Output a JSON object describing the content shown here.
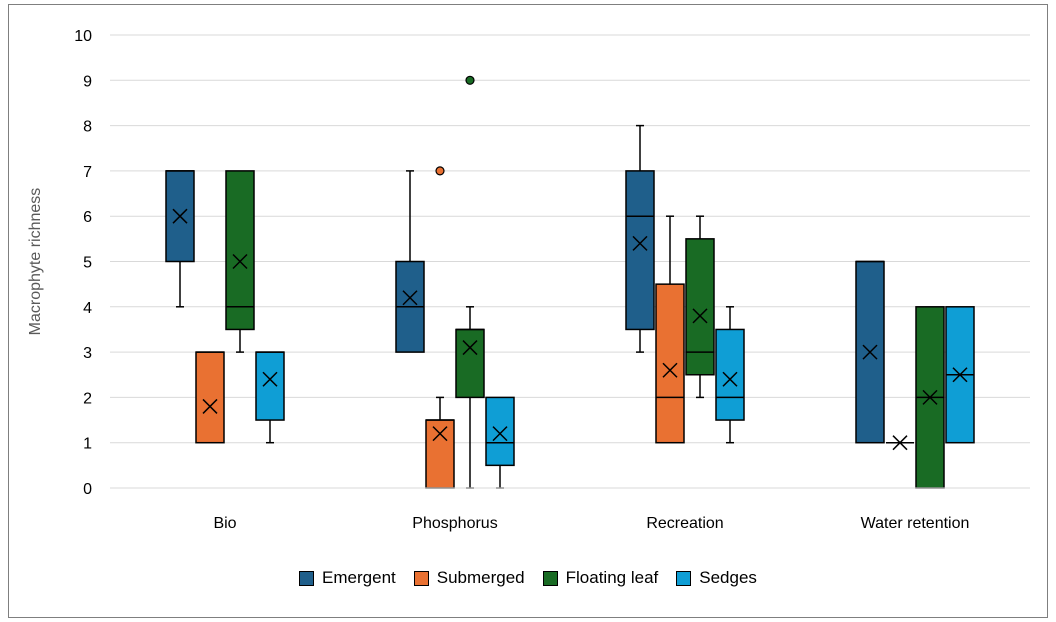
{
  "chart_data": {
    "type": "box",
    "title": "",
    "xlabel": "",
    "ylabel": "Macrophyte richness",
    "ylim": [
      0,
      10
    ],
    "yticks": [
      "0",
      "1",
      "2",
      "3",
      "4",
      "5",
      "6",
      "7",
      "8",
      "9",
      "10"
    ],
    "gridlines": true,
    "legend_position": "bottom",
    "categories": [
      "Bio",
      "Phosphorus",
      "Recreation",
      "Water retention"
    ],
    "series": [
      {
        "name": "Emergent",
        "color": "#1f5f8b",
        "boxes": [
          {
            "min": 4,
            "q1": 5,
            "median": 7,
            "q3": 7,
            "max": 7,
            "mean": 6,
            "outliers": []
          },
          {
            "min": 3,
            "q1": 3,
            "median": 4,
            "q3": 5,
            "max": 7,
            "mean": 4.2,
            "outliers": []
          },
          {
            "min": 3,
            "q1": 3.5,
            "median": 6,
            "q3": 7,
            "max": 8,
            "mean": 5.4,
            "outliers": []
          },
          {
            "min": 1,
            "q1": 1,
            "median": 5,
            "q3": 5,
            "max": 5,
            "mean": 3,
            "outliers": []
          }
        ]
      },
      {
        "name": "Submerged",
        "color": "#e97132",
        "boxes": [
          {
            "min": 1,
            "q1": 1,
            "median": 3,
            "q3": 3,
            "max": 3,
            "mean": 1.8,
            "outliers": []
          },
          {
            "min": 0,
            "q1": 0,
            "median": 1.5,
            "q3": 1.5,
            "max": 2,
            "mean": 1.2,
            "outliers": [
              7
            ]
          },
          {
            "min": 1,
            "q1": 1,
            "median": 2,
            "q3": 4.5,
            "max": 6,
            "mean": 2.6,
            "outliers": []
          },
          {
            "min": 1,
            "q1": 1,
            "median": 1,
            "q3": 1,
            "max": 1,
            "mean": 1,
            "outliers": []
          }
        ]
      },
      {
        "name": "Floating leaf",
        "color": "#196b24",
        "boxes": [
          {
            "min": 3,
            "q1": 3.5,
            "median": 4,
            "q3": 7,
            "max": 7,
            "mean": 5,
            "outliers": []
          },
          {
            "min": 0,
            "q1": 2,
            "median": 3.5,
            "q3": 3.5,
            "max": 4,
            "mean": 3.1,
            "outliers": [
              9
            ]
          },
          {
            "min": 2,
            "q1": 2.5,
            "median": 3,
            "q3": 5.5,
            "max": 6,
            "mean": 3.8,
            "outliers": []
          },
          {
            "min": 0,
            "q1": 0,
            "median": 2,
            "q3": 4,
            "max": 4,
            "mean": 2,
            "outliers": []
          }
        ]
      },
      {
        "name": "Sedges",
        "color": "#0f9ed5",
        "boxes": [
          {
            "min": 1,
            "q1": 1.5,
            "median": 3,
            "q3": 3,
            "max": 3,
            "mean": 2.4,
            "outliers": []
          },
          {
            "min": 0,
            "q1": 0.5,
            "median": 1,
            "q3": 2,
            "max": 2,
            "mean": 1.2,
            "outliers": []
          },
          {
            "min": 1,
            "q1": 1.5,
            "median": 2,
            "q3": 3.5,
            "max": 4,
            "mean": 2.4,
            "outliers": []
          },
          {
            "min": 1,
            "q1": 1,
            "median": 2.5,
            "q3": 4,
            "max": 4,
            "mean": 2.5,
            "outliers": []
          }
        ]
      }
    ]
  }
}
